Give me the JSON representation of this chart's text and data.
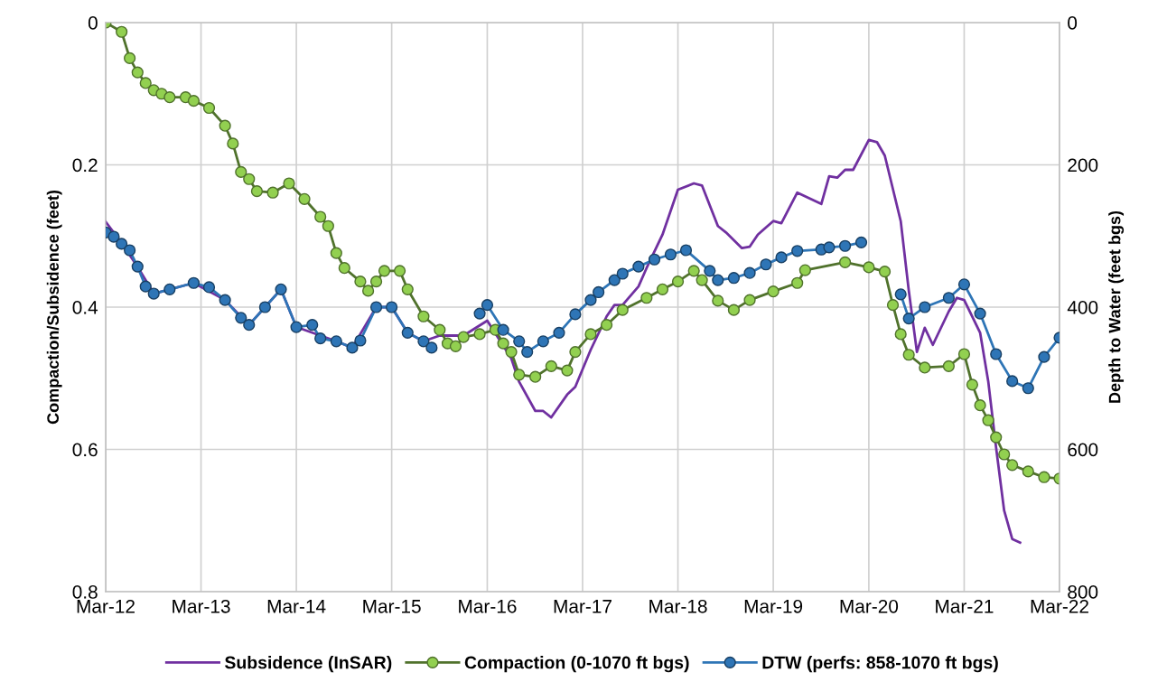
{
  "chart_data": {
    "type": "line",
    "ylabel": "Compaction/Subsidence (feet)",
    "y2label": "Depth to Water (feet bgs)",
    "xlim": [
      "2012-03",
      "2022-03"
    ],
    "xticks": [
      {
        "value": "2012-03",
        "label": "Mar-12"
      },
      {
        "value": "2013-03",
        "label": "Mar-13"
      },
      {
        "value": "2014-03",
        "label": "Mar-14"
      },
      {
        "value": "2015-03",
        "label": "Mar-15"
      },
      {
        "value": "2016-03",
        "label": "Mar-16"
      },
      {
        "value": "2017-03",
        "label": "Mar-17"
      },
      {
        "value": "2018-03",
        "label": "Mar-18"
      },
      {
        "value": "2019-03",
        "label": "Mar-19"
      },
      {
        "value": "2020-03",
        "label": "Mar-20"
      },
      {
        "value": "2021-03",
        "label": "Mar-21"
      },
      {
        "value": "2022-03",
        "label": "Mar-22"
      }
    ],
    "ylim": [
      0.8,
      0
    ],
    "yticks": [
      0,
      0.2,
      0.4,
      0.6,
      0.8
    ],
    "y2lim": [
      800,
      0
    ],
    "y2ticks": [
      0,
      200,
      400,
      600,
      800
    ],
    "grid": true,
    "legend": "bottom",
    "series": [
      {
        "name": "Subsidence (InSAR)",
        "color": "#7030a0",
        "marker": "none",
        "x": [
          "2012-03",
          "2012-05",
          "2012-07",
          "2012-09",
          "2013-02",
          "2013-06",
          "2013-09",
          "2013-11",
          "2014-01",
          "2014-03",
          "2014-08",
          "2014-10",
          "2015-01",
          "2015-03",
          "2015-05",
          "2015-07",
          "2015-09",
          "2015-12",
          "2016-03",
          "2016-06",
          "2016-07",
          "2016-09",
          "2016-10",
          "2016-11",
          "2017-01",
          "2017-02",
          "2017-04",
          "2017-06",
          "2017-07",
          "2017-08",
          "2017-10",
          "2017-11",
          "2018-01",
          "2018-03",
          "2018-05",
          "2018-06",
          "2018-08",
          "2018-09",
          "2018-11",
          "2018-12",
          "2019-01",
          "2019-03",
          "2019-04",
          "2019-06",
          "2019-09",
          "2019-10",
          "2019-11",
          "2019-12",
          "2020-01",
          "2020-03",
          "2020-04",
          "2020-05",
          "2020-07",
          "2020-08",
          "2020-09",
          "2020-10",
          "2020-11",
          "2021-01",
          "2021-02",
          "2021-03",
          "2021-05",
          "2021-06",
          "2021-07",
          "2021-08",
          "2021-09",
          "2021-10"
        ],
        "values": [
          0.28,
          0.31,
          0.343,
          0.381,
          0.366,
          0.39,
          0.425,
          0.4,
          0.375,
          0.428,
          0.448,
          0.457,
          0.4,
          0.4,
          0.436,
          0.448,
          0.44,
          0.44,
          0.419,
          0.472,
          0.505,
          0.546,
          0.546,
          0.555,
          0.523,
          0.512,
          0.46,
          0.413,
          0.397,
          0.397,
          0.371,
          0.345,
          0.298,
          0.235,
          0.226,
          0.229,
          0.286,
          0.295,
          0.317,
          0.315,
          0.298,
          0.279,
          0.282,
          0.239,
          0.255,
          0.216,
          0.218,
          0.207,
          0.207,
          0.165,
          0.168,
          0.187,
          0.279,
          0.377,
          0.463,
          0.429,
          0.453,
          0.406,
          0.387,
          0.39,
          0.436,
          0.504,
          0.597,
          0.686,
          0.726,
          0.731
        ]
      },
      {
        "name": "Compaction (0-1070 ft bgs)",
        "color": "#92d050",
        "marker": "circle",
        "x": [
          "2012-03",
          "2012-05",
          "2012-06",
          "2012-07",
          "2012-08",
          "2012-09",
          "2012-10",
          "2012-11",
          "2013-01",
          "2013-02",
          "2013-04",
          "2013-06",
          "2013-07",
          "2013-08",
          "2013-09",
          "2013-10",
          "2013-12",
          "2014-02",
          "2014-04",
          "2014-06",
          "2014-07",
          "2014-08",
          "2014-09",
          "2014-11",
          "2014-12",
          "2015-01",
          "2015-02",
          "2015-04",
          "2015-05",
          "2015-07",
          "2015-09",
          "2015-10",
          "2015-11",
          "2015-12",
          "2016-02",
          "2016-04",
          "2016-05",
          "2016-06",
          "2016-07",
          "2016-09",
          "2016-11",
          "2017-01",
          "2017-02",
          "2017-04",
          "2017-06",
          "2017-08",
          "2017-11",
          "2018-01",
          "2018-03",
          "2018-05",
          "2018-06",
          "2018-08",
          "2018-10",
          "2018-12",
          "2019-03",
          "2019-06",
          "2019-07",
          "2019-12",
          "2020-03",
          "2020-05",
          "2020-06",
          "2020-07",
          "2020-08",
          "2020-10",
          "2021-01",
          "2021-03",
          "2021-04",
          "2021-05",
          "2021-06",
          "2021-07",
          "2021-08",
          "2021-09",
          "2021-11",
          "2022-01",
          "2022-03"
        ],
        "values": [
          0.0,
          0.013,
          0.05,
          0.07,
          0.085,
          0.095,
          0.1,
          0.105,
          0.105,
          0.11,
          0.12,
          0.145,
          0.17,
          0.21,
          0.22,
          0.237,
          0.239,
          0.226,
          0.248,
          0.273,
          0.286,
          0.324,
          0.345,
          0.364,
          0.377,
          0.364,
          0.349,
          0.349,
          0.375,
          0.413,
          0.432,
          0.451,
          0.455,
          0.442,
          0.438,
          0.432,
          0.451,
          0.463,
          0.495,
          0.498,
          0.483,
          0.489,
          0.463,
          0.438,
          0.425,
          0.404,
          0.387,
          0.375,
          0.364,
          0.349,
          0.362,
          0.391,
          0.404,
          0.39,
          0.378,
          0.366,
          0.348,
          0.337,
          0.344,
          0.35,
          0.397,
          0.438,
          0.467,
          0.485,
          0.483,
          0.466,
          0.509,
          0.538,
          0.559,
          0.583,
          0.607,
          0.622,
          0.631,
          0.639,
          0.641
        ]
      },
      {
        "name": "DTW (perfs: 858-1070 ft bgs)",
        "color": "#2e75b6",
        "marker": "circle",
        "axis": "y2",
        "x": [
          "2012-03",
          "2012-04",
          "2012-05",
          "2012-06",
          "2012-07",
          "2012-08",
          "2012-09",
          "2012-11",
          "2013-02",
          "2013-04",
          "2013-06",
          "2013-08",
          "2013-09",
          "2013-11",
          "2014-01",
          "2014-03",
          "2014-05",
          "2014-06",
          "2014-08",
          "2014-10",
          "2014-11",
          "2015-01",
          "2015-03",
          "2015-05",
          "2015-07",
          "2015-08",
          "2015-11",
          "2016-02",
          "2016-03",
          "2016-05",
          "2016-07",
          "2016-08",
          "2016-10",
          "2016-12",
          "2017-02",
          "2017-04",
          "2017-05",
          "2017-07",
          "2017-08",
          "2017-10",
          "2017-12",
          "2018-02",
          "2018-04",
          "2018-07",
          "2018-08",
          "2018-10",
          "2018-12",
          "2019-02",
          "2019-04",
          "2019-06",
          "2019-09",
          "2019-10",
          "2019-12",
          "2020-02",
          "2020-04",
          "2020-07",
          "2020-08",
          "2020-10",
          "2021-01",
          "2021-03",
          "2021-05",
          "2021-07",
          "2021-09",
          "2021-11",
          "2022-01",
          "2022-03"
        ],
        "values": [
          295,
          301,
          311,
          320,
          343,
          371,
          381,
          375,
          366,
          372,
          390,
          415,
          425,
          400,
          375,
          428,
          425,
          444,
          448,
          457,
          447,
          400,
          400,
          436,
          448,
          457,
          null,
          409,
          397,
          432,
          448,
          463,
          448,
          436,
          410,
          390,
          379,
          362,
          353,
          343,
          333,
          326,
          320,
          349,
          362,
          359,
          352,
          340,
          330,
          321,
          319,
          316,
          314,
          309,
          null,
          382,
          416,
          400,
          387,
          368,
          409,
          466,
          504,
          514,
          470,
          443
        ]
      }
    ]
  }
}
